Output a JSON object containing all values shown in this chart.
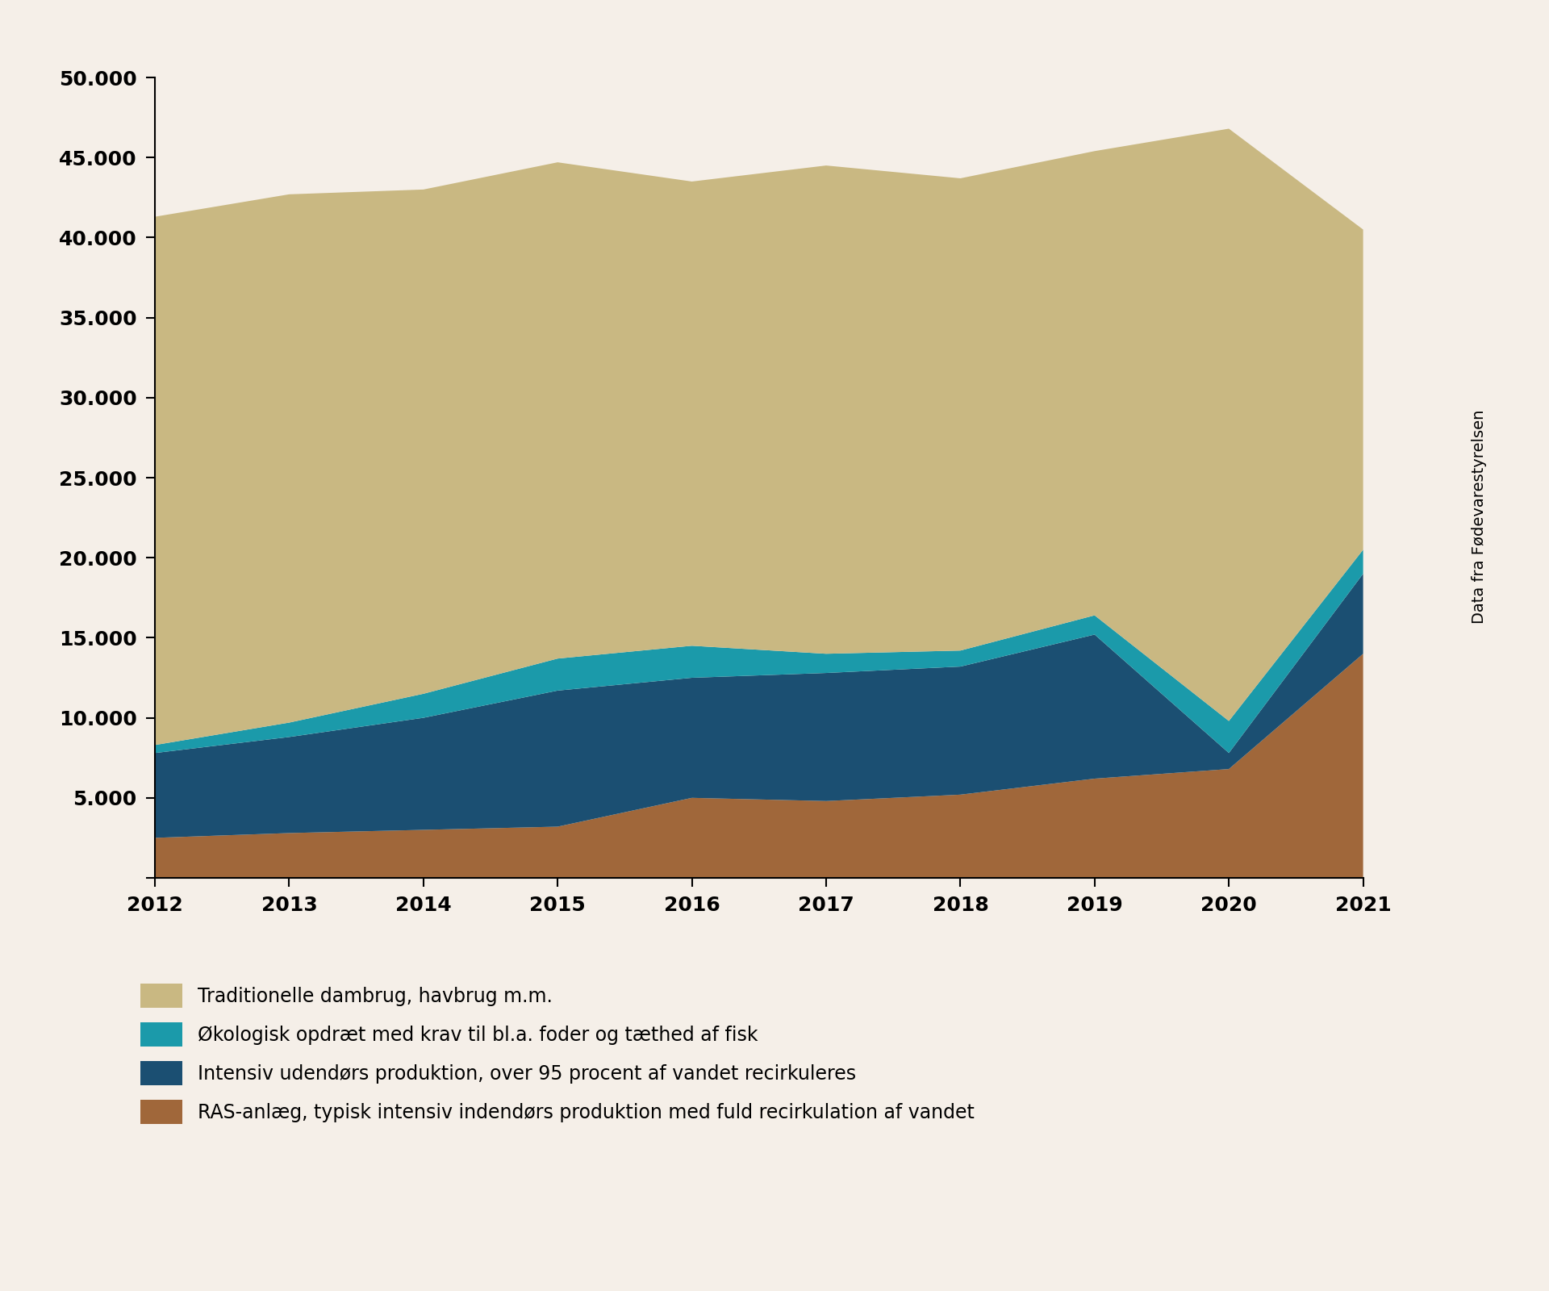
{
  "years": [
    2012,
    2013,
    2014,
    2015,
    2016,
    2017,
    2018,
    2019,
    2020,
    2021
  ],
  "ras": [
    2500,
    2800,
    3000,
    3200,
    5000,
    4800,
    5200,
    6200,
    6800,
    14000
  ],
  "intensiv": [
    5300,
    6000,
    7000,
    8500,
    7500,
    8000,
    8000,
    9000,
    1000,
    5000
  ],
  "okologisk": [
    500,
    900,
    1500,
    2000,
    2000,
    1200,
    1000,
    1200,
    2000,
    1500
  ],
  "traditionelle": [
    33000,
    33000,
    31500,
    31000,
    29000,
    30500,
    29500,
    29000,
    37000,
    20000
  ],
  "colors": {
    "ras": "#A0673A",
    "intensiv": "#1B4F72",
    "okologisk": "#1B9AAA",
    "traditionelle": "#C9B882"
  },
  "background_color": "#F5EFE8",
  "ylim": [
    0,
    50000
  ],
  "yticks": [
    0,
    5000,
    10000,
    15000,
    20000,
    25000,
    30000,
    35000,
    40000,
    45000,
    50000
  ],
  "legend_labels": [
    "Traditionelle dambrug, havbrug m.m.",
    "Økologisk opdræt med krav til bl.a. foder og tæthed af fisk",
    "Intensiv udendørs produktion, over 95 procent af vandet recirkuleres",
    "RAS-anlæg, typisk intensiv indendørs produktion med fuld recirkulation af vandet"
  ],
  "watermark_text": "Data fra Fødevarestyrelsen"
}
